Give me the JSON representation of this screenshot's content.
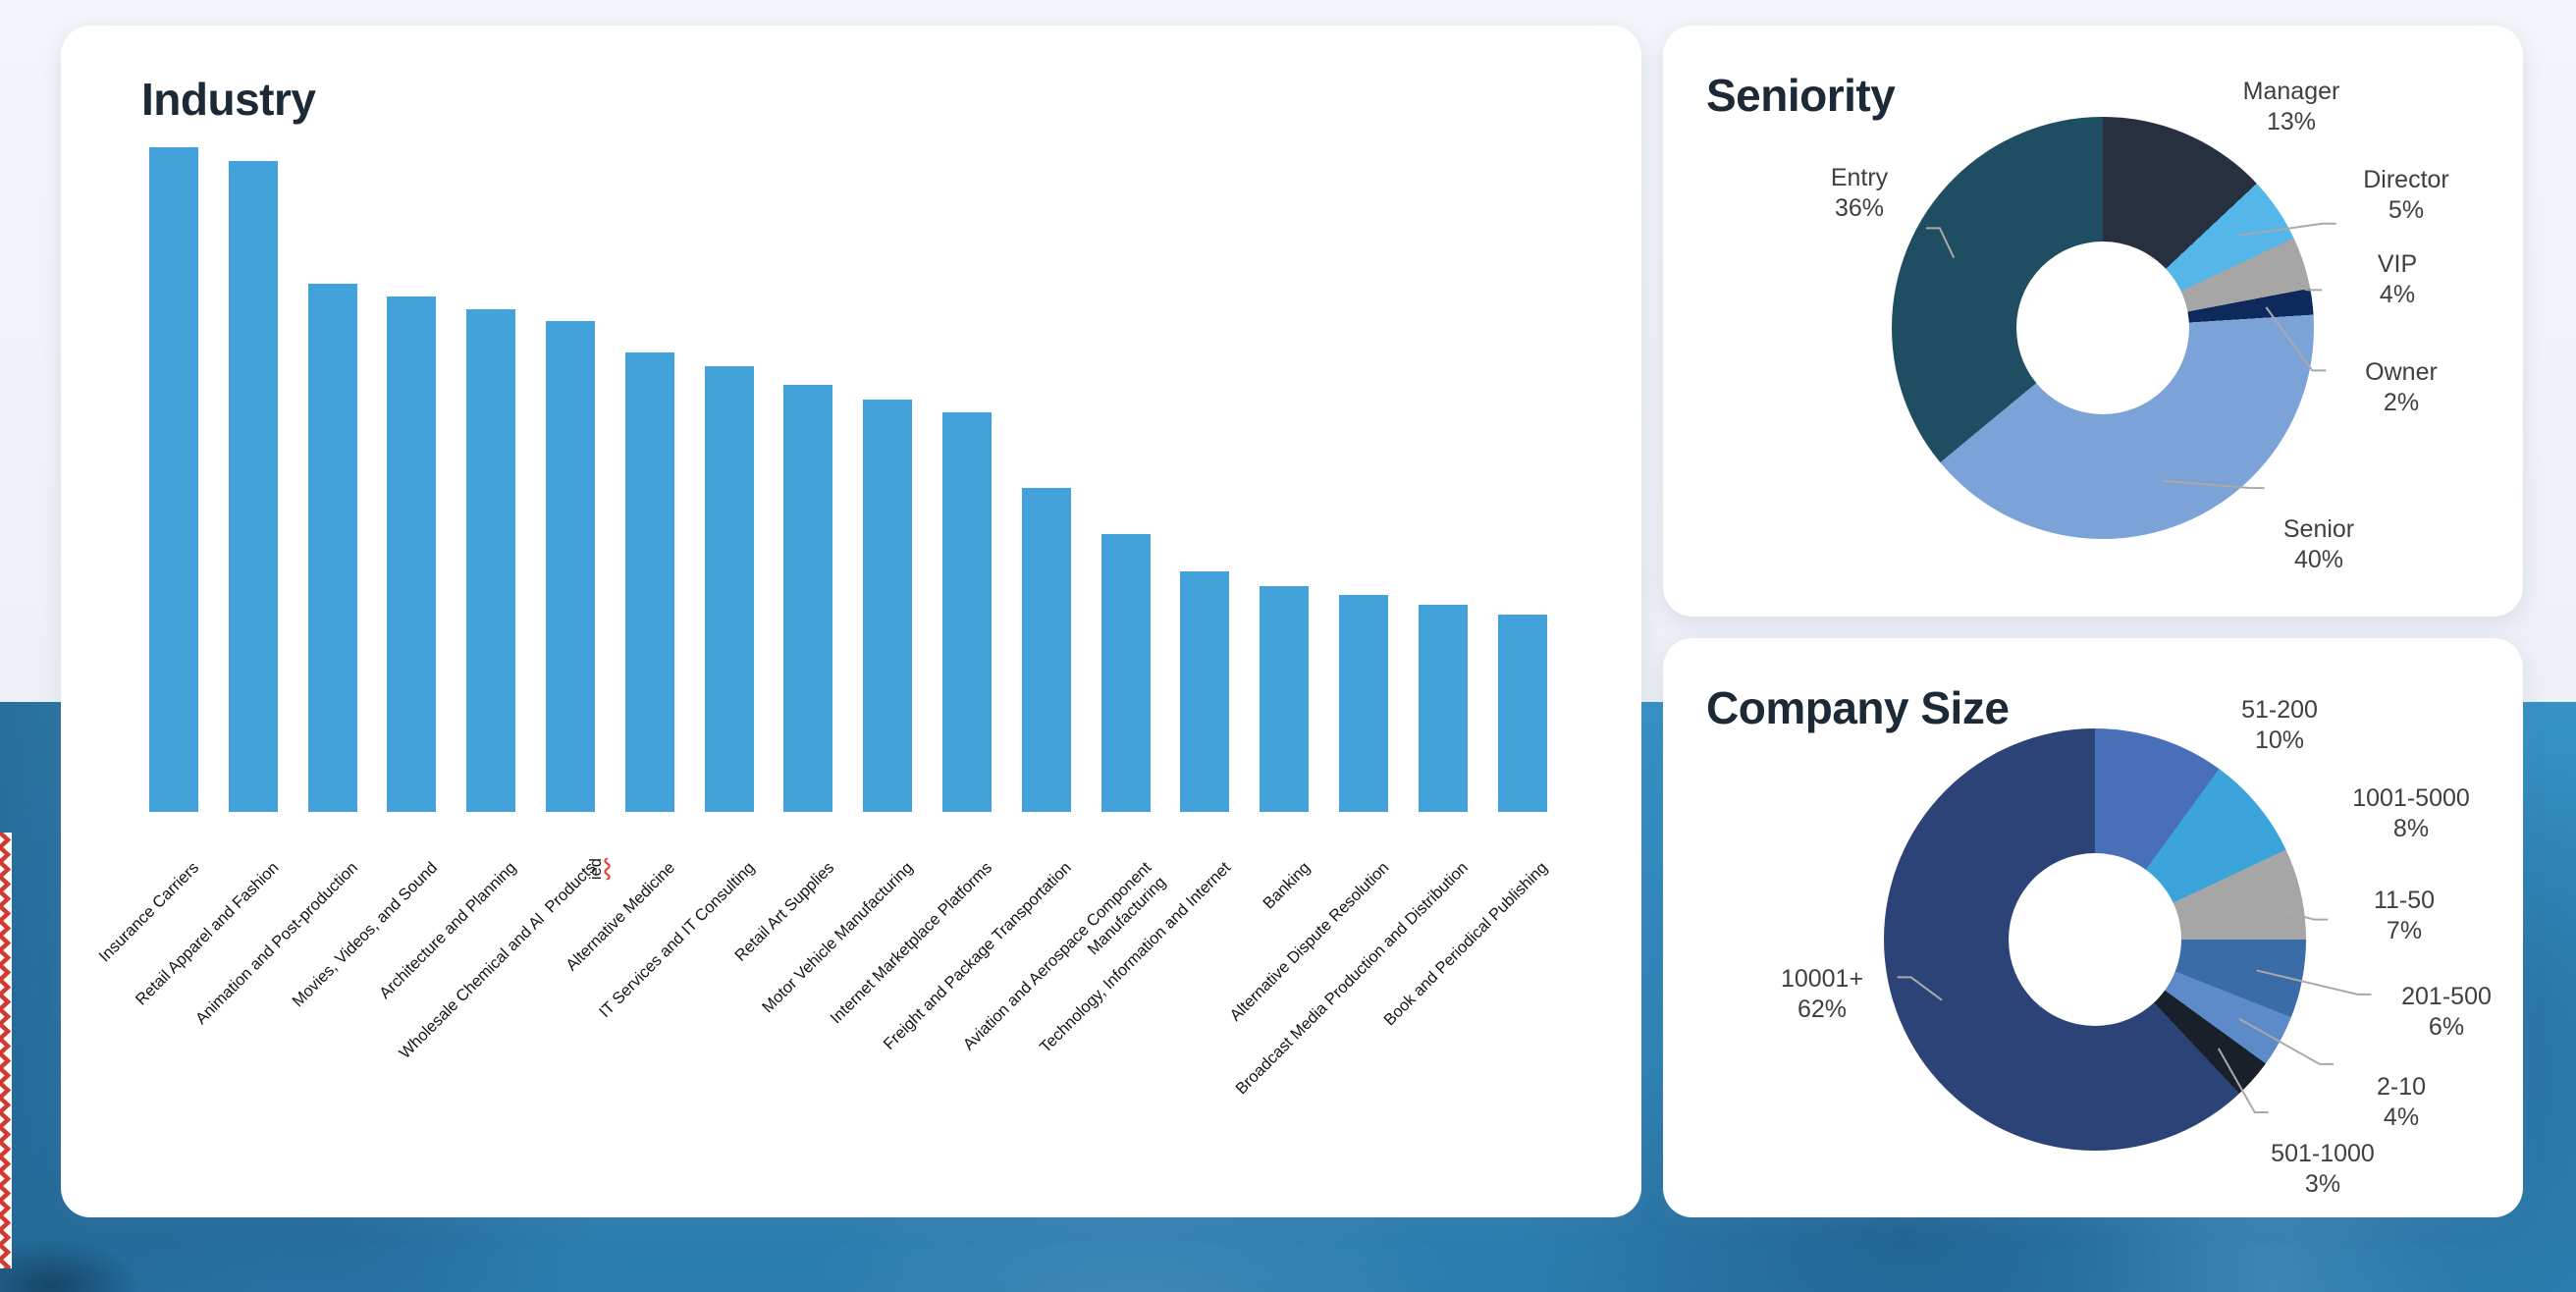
{
  "cards": {
    "industry": {
      "title": "Industry"
    },
    "seniority": {
      "title": "Seniority"
    },
    "company_size": {
      "title": "Company Size"
    }
  },
  "chart_data": [
    {
      "type": "bar",
      "title": "Industry",
      "categories": [
        "Insurance Carriers",
        "Retail Apparel and Fashion",
        "Animation and Post-production",
        "Movies, Videos, and Sound",
        "Architecture and Planning",
        "Wholesale Chemical and Al ied Products",
        "Alternative Medicine",
        "IT Services and IT Consulting",
        "Retail Art Supplies",
        "Motor Vehicle Manufacturing",
        "Internet Marketplace Platforms",
        "Freight and Package Transportation",
        "Aviation and Aerospace Component\nManufacturing",
        "Technology, Information and Internet",
        "Banking",
        "Alternative Dispute Resolution",
        "Broadcast Media Production and Distribution",
        "Book and Periodical Publishing"
      ],
      "values": [
        100,
        98,
        79.5,
        77.6,
        75.6,
        73.9,
        69.2,
        67,
        64.2,
        62,
        60.1,
        48.7,
        41.8,
        36.2,
        33.9,
        32.7,
        31.2,
        29.7
      ],
      "value_note": "relative bar heights, tallest bar = 100 (chart shows no numeric axis)",
      "bar_color": "#43a2d9",
      "misspelled_fragment": "ied",
      "xlabel": "",
      "ylabel": ""
    },
    {
      "type": "pie",
      "subtype": "donut",
      "title": "Seniority",
      "start": "top",
      "direction": "clockwise",
      "segments": [
        {
          "label": "Manager",
          "value_pct": 13,
          "color": "#26303e"
        },
        {
          "label": "Director",
          "value_pct": 5,
          "color": "#55b6ea"
        },
        {
          "label": "VIP",
          "value_pct": 4,
          "color": "#a6a6a6"
        },
        {
          "label": "Owner",
          "value_pct": 2,
          "color": "#0e2a5c"
        },
        {
          "label": "Senior",
          "value_pct": 40,
          "color": "#7ba3d7"
        },
        {
          "label": "Entry",
          "value_pct": 36,
          "color": "#1f4e63"
        }
      ]
    },
    {
      "type": "pie",
      "subtype": "donut",
      "title": "Company Size",
      "start": "top",
      "direction": "clockwise",
      "segments": [
        {
          "label": "51-200",
          "value_pct": 10,
          "color": "#4a6fb9"
        },
        {
          "label": "1001-5000",
          "value_pct": 8,
          "color": "#3ba4db"
        },
        {
          "label": "11-50",
          "value_pct": 7,
          "color": "#a6a6a6"
        },
        {
          "label": "201-500",
          "value_pct": 6,
          "color": "#3a6ca8"
        },
        {
          "label": "2-10",
          "value_pct": 4,
          "color": "#5d8bc9"
        },
        {
          "label": "501-1000",
          "value_pct": 3,
          "color": "#1a202a"
        },
        {
          "label": "10001+",
          "value_pct": 62,
          "color": "#2c4377"
        }
      ]
    }
  ],
  "colors": {
    "page_top_bg": "#eef1f7",
    "photo_bg_base": "#2f86ba",
    "card_bg": "#ffffff",
    "title_text": "#1c2a38",
    "donut_label_text": "#3f3f3f",
    "axis_label_text": "#141414",
    "leader_line": "#a9a9a9",
    "spellcheck_red": "#e03c31",
    "zigzag_red": "#cf3b30"
  }
}
